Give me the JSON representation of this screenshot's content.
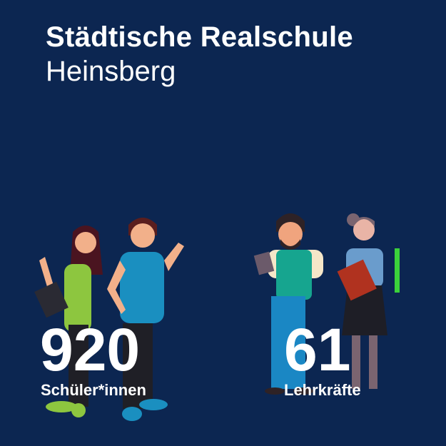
{
  "header": {
    "title": "Städtische Realschule",
    "subtitle": "Heinsberg"
  },
  "stats": [
    {
      "value": "920",
      "label": "Schüler*innen",
      "illustration": "students"
    },
    {
      "value": "61",
      "label": "Lehrkräfte",
      "illustration": "teachers"
    }
  ],
  "colors": {
    "background": "#0c2651",
    "text": "#ffffff"
  }
}
